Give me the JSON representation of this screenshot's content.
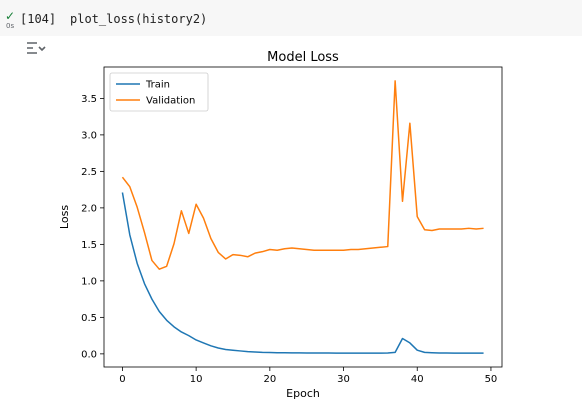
{
  "cell": {
    "status_icon": "check-icon",
    "status_color": "#188038",
    "run_time": "0s",
    "execution_count": "[104]",
    "code": "plot_loss(history2)",
    "output_toggle_icon": "output-toggle-icon"
  },
  "chart_data": {
    "type": "line",
    "title": "Model Loss",
    "xlabel": "Epoch",
    "ylabel": "Loss",
    "xlim": [
      -2.5,
      51.5
    ],
    "ylim": [
      -0.18,
      3.93
    ],
    "xticks": [
      0,
      10,
      20,
      30,
      40,
      50
    ],
    "yticks": [
      0.0,
      0.5,
      1.0,
      1.5,
      2.0,
      2.5,
      3.0,
      3.5
    ],
    "grid": false,
    "legend_position": "upper-left",
    "x": [
      0,
      1,
      2,
      3,
      4,
      5,
      6,
      7,
      8,
      9,
      10,
      11,
      12,
      13,
      14,
      15,
      16,
      17,
      18,
      19,
      20,
      21,
      22,
      23,
      24,
      25,
      26,
      27,
      28,
      29,
      30,
      31,
      32,
      33,
      34,
      35,
      36,
      37,
      38,
      39,
      40,
      41,
      42,
      43,
      44,
      45,
      46,
      47,
      48,
      49
    ],
    "series": [
      {
        "name": "Train",
        "color": "#1f77b4",
        "values": [
          2.21,
          1.63,
          1.24,
          0.96,
          0.75,
          0.58,
          0.46,
          0.37,
          0.3,
          0.25,
          0.19,
          0.15,
          0.11,
          0.08,
          0.06,
          0.05,
          0.04,
          0.03,
          0.025,
          0.02,
          0.018,
          0.016,
          0.015,
          0.014,
          0.013,
          0.012,
          0.012,
          0.011,
          0.011,
          0.01,
          0.01,
          0.01,
          0.01,
          0.01,
          0.01,
          0.01,
          0.012,
          0.02,
          0.21,
          0.15,
          0.05,
          0.02,
          0.015,
          0.012,
          0.011,
          0.01,
          0.01,
          0.01,
          0.01,
          0.01
        ]
      },
      {
        "name": "Validation",
        "color": "#ff7f0e",
        "values": [
          2.42,
          2.29,
          2.01,
          1.66,
          1.28,
          1.16,
          1.2,
          1.51,
          1.96,
          1.65,
          2.05,
          1.86,
          1.58,
          1.39,
          1.3,
          1.36,
          1.35,
          1.33,
          1.38,
          1.4,
          1.43,
          1.42,
          1.44,
          1.45,
          1.44,
          1.43,
          1.42,
          1.42,
          1.42,
          1.42,
          1.42,
          1.43,
          1.43,
          1.44,
          1.45,
          1.46,
          1.47,
          3.74,
          2.09,
          3.16,
          1.88,
          1.7,
          1.69,
          1.71,
          1.71,
          1.71,
          1.71,
          1.72,
          1.71,
          1.72
        ]
      }
    ]
  }
}
